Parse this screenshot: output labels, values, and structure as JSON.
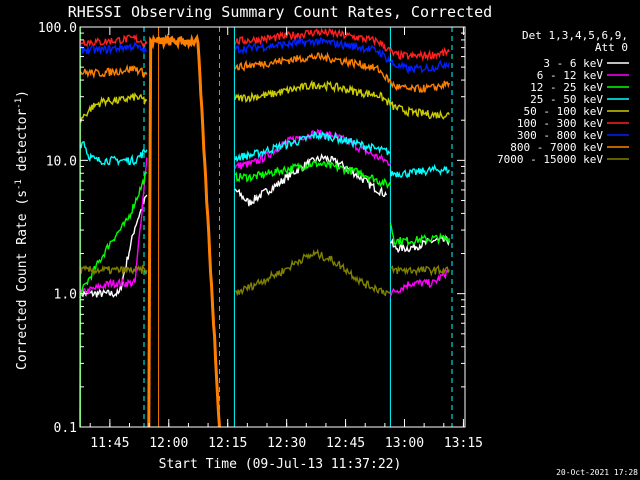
{
  "chart_data": {
    "type": "line",
    "title": "RHESSI Observing Summary Count Rates, Corrected",
    "xlabel": "Start Time (09-Jul-13 11:37:22)",
    "ylabel_main": "Corrected Count Rate (s",
    "ylabel_sup": "-1",
    "ylabel_mid": " detector",
    "ylabel_end": ")",
    "xlim_minutes": [
      0,
      98
    ],
    "ylim": [
      0.1,
      100
    ],
    "y_scale": "log",
    "x_ticks": [
      {
        "label": "11:45",
        "minute": 7.6
      },
      {
        "label": "12:00",
        "minute": 22.6
      },
      {
        "label": "12:15",
        "minute": 37.6
      },
      {
        "label": "12:30",
        "minute": 52.6
      },
      {
        "label": "12:45",
        "minute": 67.6
      },
      {
        "label": "13:00",
        "minute": 82.6
      },
      {
        "label": "13:15",
        "minute": 97.6
      }
    ],
    "y_ticks": [
      {
        "label": "100.0",
        "value": 100
      },
      {
        "label": "10.0",
        "value": 10
      },
      {
        "label": "1.0",
        "value": 1
      },
      {
        "label": "0.1",
        "value": 0.1
      }
    ],
    "legend": {
      "header1": "Det 1,3,4,5,6,9,",
      "header2": "Att 0",
      "placement": "right"
    },
    "series": [
      {
        "name": "3 - 6 keV",
        "color": "#ffffff",
        "segments": [
          {
            "x": [
              0,
              5,
              10,
              14,
              17
            ],
            "y": [
              1.0,
              1.0,
              1.0,
              3.2,
              5.5
            ]
          },
          {
            "x": [
              39.5,
              43,
              46,
              50,
              54,
              58,
              62,
              66,
              70,
              74,
              78
            ],
            "y": [
              6.0,
              4.8,
              5.5,
              6.5,
              8.0,
              9.5,
              10.5,
              9.5,
              8.0,
              6.5,
              5.5
            ]
          },
          {
            "x": [
              79,
              80,
              84,
              90,
              94
            ],
            "y": [
              2.5,
              2.2,
              2.2,
              2.5,
              2.5
            ]
          }
        ]
      },
      {
        "name": "6 - 12 keV",
        "color": "#ff00ff",
        "segments": [
          {
            "x": [
              0,
              8,
              14,
              17
            ],
            "y": [
              1.0,
              1.2,
              1.2,
              10.5
            ]
          },
          {
            "x": [
              39.5,
              44,
              48,
              52,
              56,
              60,
              64,
              68,
              72,
              76,
              79
            ],
            "y": [
              9.0,
              9.5,
              11.0,
              13.5,
              15.0,
              16.0,
              15.5,
              14.0,
              12.0,
              10.5,
              9.5
            ]
          },
          {
            "x": [
              79,
              84,
              90,
              94
            ],
            "y": [
              1.0,
              1.2,
              1.2,
              1.5
            ]
          }
        ]
      },
      {
        "name": "12 - 25 keV",
        "color": "#00ff00",
        "segments": [
          {
            "x": [
              0,
              0.1,
              8,
              12,
              17
            ],
            "y": [
              0.1,
              1.0,
              2.5,
              3.5,
              8.0
            ]
          },
          {
            "x": [
              39.5,
              44,
              48,
              52,
              56,
              60,
              64,
              68,
              72,
              76,
              79
            ],
            "y": [
              7.5,
              7.5,
              8.0,
              8.5,
              9.0,
              9.5,
              9.0,
              8.5,
              8.0,
              7.0,
              6.5
            ]
          },
          {
            "x": [
              79,
              80,
              84,
              90,
              94
            ],
            "y": [
              3.5,
              2.5,
              2.5,
              2.6,
              2.6
            ]
          }
        ]
      },
      {
        "name": "25 - 50 keV",
        "color": "#00ffff",
        "segments": [
          {
            "x": [
              0,
              1,
              2,
              4,
              6,
              10,
              14,
              17
            ],
            "y": [
              13,
              14,
              11,
              10,
              10,
              10,
              10,
              12
            ]
          },
          {
            "x": [
              39.5,
              44,
              48,
              52,
              56,
              60,
              64,
              68,
              72,
              76,
              79
            ],
            "y": [
              10.5,
              11.0,
              12.0,
              13.0,
              14.0,
              15.5,
              15.0,
              14.0,
              13.0,
              12.0,
              11.5
            ]
          },
          {
            "x": [
              79,
              84,
              90,
              94
            ],
            "y": [
              8.0,
              8.0,
              8.5,
              8.5
            ]
          }
        ]
      },
      {
        "name": "50 - 100 keV",
        "color": "#cccc00",
        "segments": [
          {
            "x": [
              0,
              3,
              6,
              10,
              14,
              17
            ],
            "y": [
              20,
              25,
              28,
              28,
              30,
              28
            ]
          },
          {
            "x": [
              39.5,
              44,
              48,
              52,
              56,
              60,
              64,
              68,
              72,
              76,
              80,
              84,
              90,
              94
            ],
            "y": [
              29,
              30,
              31,
              33,
              35,
              37,
              36,
              34,
              32,
              31,
              25,
              23,
              22,
              22
            ]
          }
        ]
      },
      {
        "name": "100 - 300 keV",
        "color": "#ff2020",
        "segments": [
          {
            "x": [
              0,
              5,
              10,
              14,
              17
            ],
            "y": [
              78,
              77,
              80,
              82,
              75
            ]
          },
          {
            "x": [
              39.5,
              44,
              48,
              52,
              56,
              60,
              64,
              68,
              72,
              76,
              80,
              84,
              90,
              94
            ],
            "y": [
              78,
              80,
              82,
              85,
              88,
              92,
              90,
              86,
              82,
              78,
              62,
              60,
              62,
              65
            ]
          }
        ]
      },
      {
        "name": "300 - 800 keV",
        "color": "#0020ff",
        "segments": [
          {
            "x": [
              0,
              5,
              10,
              14,
              17
            ],
            "y": [
              68,
              67,
              70,
              72,
              65
            ]
          },
          {
            "x": [
              39.5,
              44,
              48,
              52,
              56,
              60,
              64,
              68,
              72,
              76,
              80,
              84,
              90,
              94
            ],
            "y": [
              68,
              70,
              72,
              74,
              76,
              78,
              76,
              73,
              70,
              66,
              52,
              48,
              50,
              54
            ]
          }
        ]
      },
      {
        "name": "800 - 7000 keV",
        "color": "#ff8000",
        "segments": [
          {
            "x": [
              0,
              5,
              10,
              14,
              17
            ],
            "y": [
              46,
              45,
              47,
              49,
              44
            ]
          },
          {
            "x": [
              17.5,
              18,
              30,
              35.5
            ],
            "y": [
              0.1,
              78,
              78,
              0.1
            ]
          },
          {
            "x": [
              39.5,
              44,
              48,
              52,
              56,
              60,
              64,
              68,
              72,
              76,
              80,
              84,
              90,
              94
            ],
            "y": [
              50,
              52,
              54,
              56,
              58,
              60,
              58,
              55,
              52,
              48,
              36,
              34,
              35,
              38
            ]
          }
        ]
      },
      {
        "name": "7000 - 15000 keV",
        "color": "#808000",
        "segments": [
          {
            "x": [
              0,
              17
            ],
            "y": [
              1.5,
              1.5
            ]
          },
          {
            "x": [
              39.5,
              52,
              56,
              60,
              64,
              68,
              72,
              79
            ],
            "y": [
              1.0,
              1.5,
              1.8,
              2.0,
              1.8,
              1.5,
              1.2,
              1.0
            ]
          },
          {
            "x": [
              79,
              94
            ],
            "y": [
              1.5,
              1.5
            ]
          }
        ]
      }
    ],
    "vertical_markers": [
      {
        "minute": 0.1,
        "color": "#00ff00",
        "style": "solid"
      },
      {
        "minute": 16.3,
        "color": "#00ffff",
        "style": "dashed"
      },
      {
        "minute": 20.0,
        "color": "#ff8000",
        "style": "solid"
      },
      {
        "minute": 35.5,
        "color": "#ff8000",
        "style": "dashed"
      },
      {
        "minute": 39.3,
        "color": "#00ffff",
        "style": "solid"
      },
      {
        "minute": 79.0,
        "color": "#00ffff",
        "style": "solid"
      },
      {
        "minute": 94.7,
        "color": "#00ffff",
        "style": "dashed"
      }
    ],
    "footer_date": "20-Oct-2021 17:28",
    "grid": false,
    "background": "#000000"
  }
}
